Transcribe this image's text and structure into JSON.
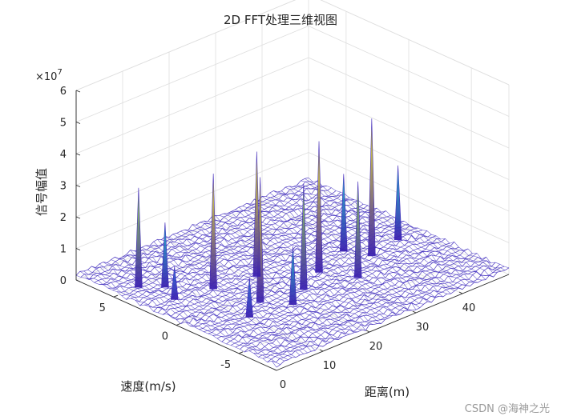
{
  "chart_data": {
    "type": "surface",
    "title": "2D FFT处理三维视图",
    "xlabel": "距离(m)",
    "ylabel": "速度(m/s)",
    "zlabel": "信号幅值",
    "z_exponent_label": "×10",
    "z_exponent_power": "7",
    "xlim": [
      0,
      50
    ],
    "ylim": [
      -8,
      8
    ],
    "zlim": [
      0,
      6
    ],
    "x_ticks": [
      "0",
      "10",
      "20",
      "30",
      "40"
    ],
    "y_ticks": [
      "5",
      "0",
      "-5"
    ],
    "z_ticks": [
      "0",
      "1",
      "2",
      "3",
      "4",
      "5",
      "6"
    ],
    "grid": true,
    "colormap": [
      "#3a1fb0",
      "#2c6fd6",
      "#1fb5c8",
      "#8ed24a",
      "#e6e01f"
    ],
    "peaks": [
      {
        "x": 4,
        "y": 4.5,
        "z": 3.3
      },
      {
        "x": 5,
        "y": 2.0,
        "z": 1.2
      },
      {
        "x": 7,
        "y": 3.5,
        "z": 2.2
      },
      {
        "x": 9,
        "y": -2.5,
        "z": 1.4
      },
      {
        "x": 12,
        "y": 1.5,
        "z": 3.8
      },
      {
        "x": 14,
        "y": -1.5,
        "z": 4.1
      },
      {
        "x": 17,
        "y": -3.0,
        "z": 2.0
      },
      {
        "x": 20,
        "y": 1.0,
        "z": 4.1
      },
      {
        "x": 22,
        "y": -2.0,
        "z": 3.5
      },
      {
        "x": 28,
        "y": -1.0,
        "z": 4.3
      },
      {
        "x": 31,
        "y": -3.0,
        "z": 3.2
      },
      {
        "x": 36,
        "y": 0.0,
        "z": 2.6
      },
      {
        "x": 38,
        "y": -1.5,
        "z": 4.5
      },
      {
        "x": 45,
        "y": -1.0,
        "z": 2.5
      }
    ]
  },
  "watermark": "CSDN @海神之光"
}
